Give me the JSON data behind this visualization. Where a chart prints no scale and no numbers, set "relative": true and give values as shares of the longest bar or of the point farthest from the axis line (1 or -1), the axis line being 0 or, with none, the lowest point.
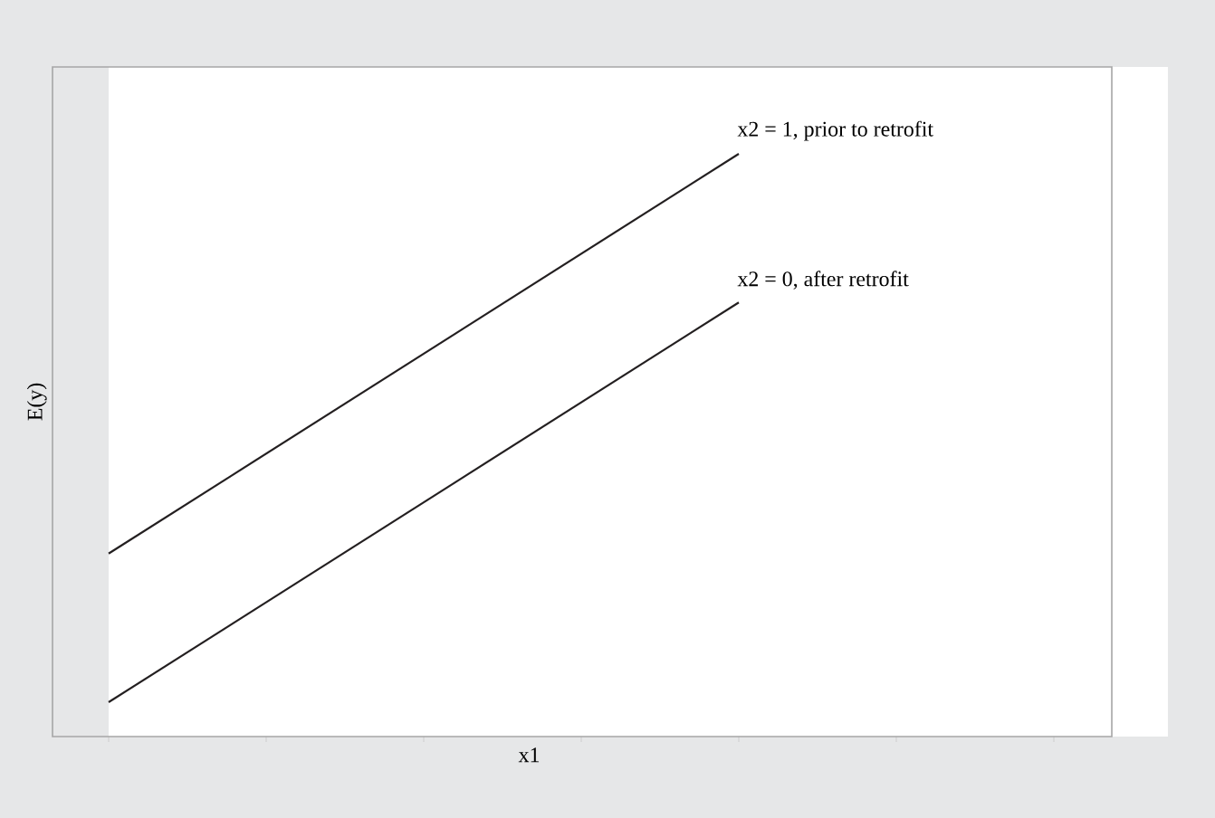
{
  "chart_data": {
    "type": "line",
    "xlabel": "x1",
    "ylabel": "E(y)",
    "categories": [
      null,
      null,
      null,
      null,
      null,
      null,
      null
    ],
    "relative": true,
    "tick_labels": false,
    "legend": false,
    "grid": false,
    "marker": "none",
    "line_style": "solid",
    "series": [
      {
        "name": "x2 = 1, prior to retrofit",
        "color": "#231f20",
        "values": [
          0.314,
          null,
          null,
          null,
          1,
          null,
          null
        ]
      },
      {
        "name": "x2 = 0, after retrofit",
        "color": "#231f20",
        "values": [
          0.059,
          null,
          null,
          null,
          0.745,
          null,
          null
        ]
      }
    ]
  }
}
